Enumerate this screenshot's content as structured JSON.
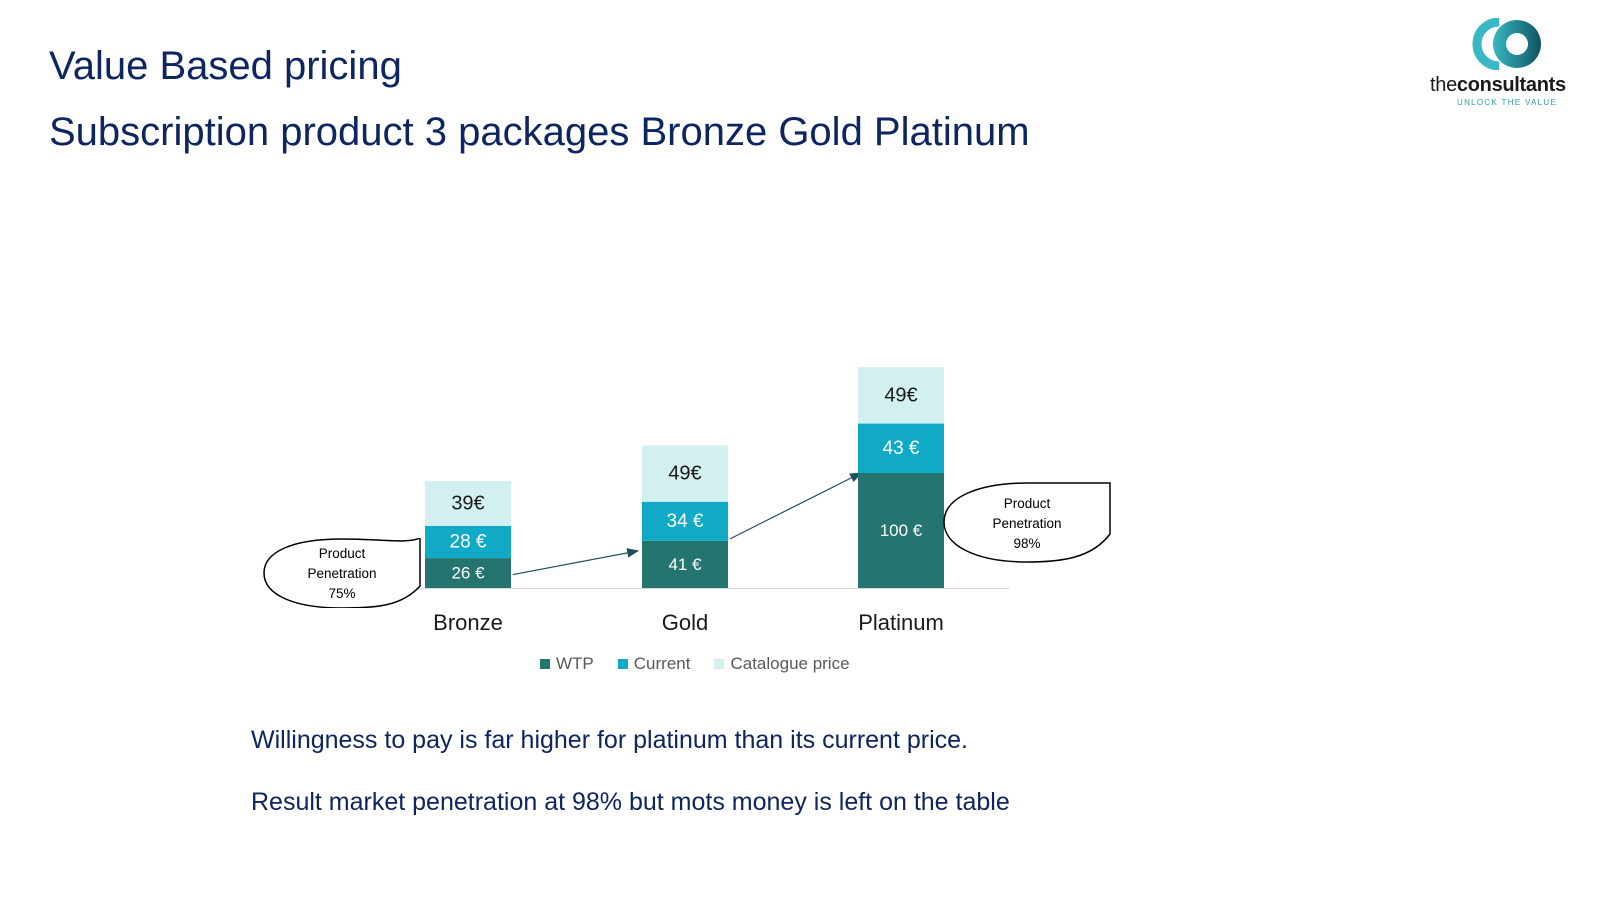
{
  "slide": {
    "title": "Value Based pricing",
    "subtitle": "Subscription product 3 packages  Bronze Gold  Platinum",
    "notes": [
      "Willingness to pay is far higher  for platinum than its current price.",
      "Result market penetration at 98% but mots money is left on the table"
    ]
  },
  "logo": {
    "brand_light": "the",
    "brand_bold": "consultants",
    "tagline": "UNLOCK THE VALUE"
  },
  "chart_data": {
    "type": "bar",
    "stacked": true,
    "categories": [
      "Bronze",
      "Gold",
      "Platinum"
    ],
    "series": [
      {
        "name": "WTP",
        "color": "#247470",
        "values": [
          26,
          41,
          100
        ],
        "labels": [
          "26 €",
          "41 €",
          "100 €"
        ]
      },
      {
        "name": "Current",
        "color": "#10aac6",
        "values": [
          28,
          34,
          43
        ],
        "labels": [
          "28 €",
          "34 €",
          "43 €"
        ]
      },
      {
        "name": "Catalogue price",
        "color": "#d3f0f0",
        "values": [
          39,
          49,
          49
        ],
        "labels": [
          "39€",
          "49€",
          "49€"
        ]
      }
    ],
    "legend_position": "bottom",
    "grid": false,
    "annotations": [
      {
        "category": "Bronze",
        "lines": [
          "Product",
          "Penetration",
          "75%"
        ]
      },
      {
        "category": "Platinum",
        "lines": [
          "Product",
          "Penetration",
          "98%"
        ]
      }
    ]
  }
}
